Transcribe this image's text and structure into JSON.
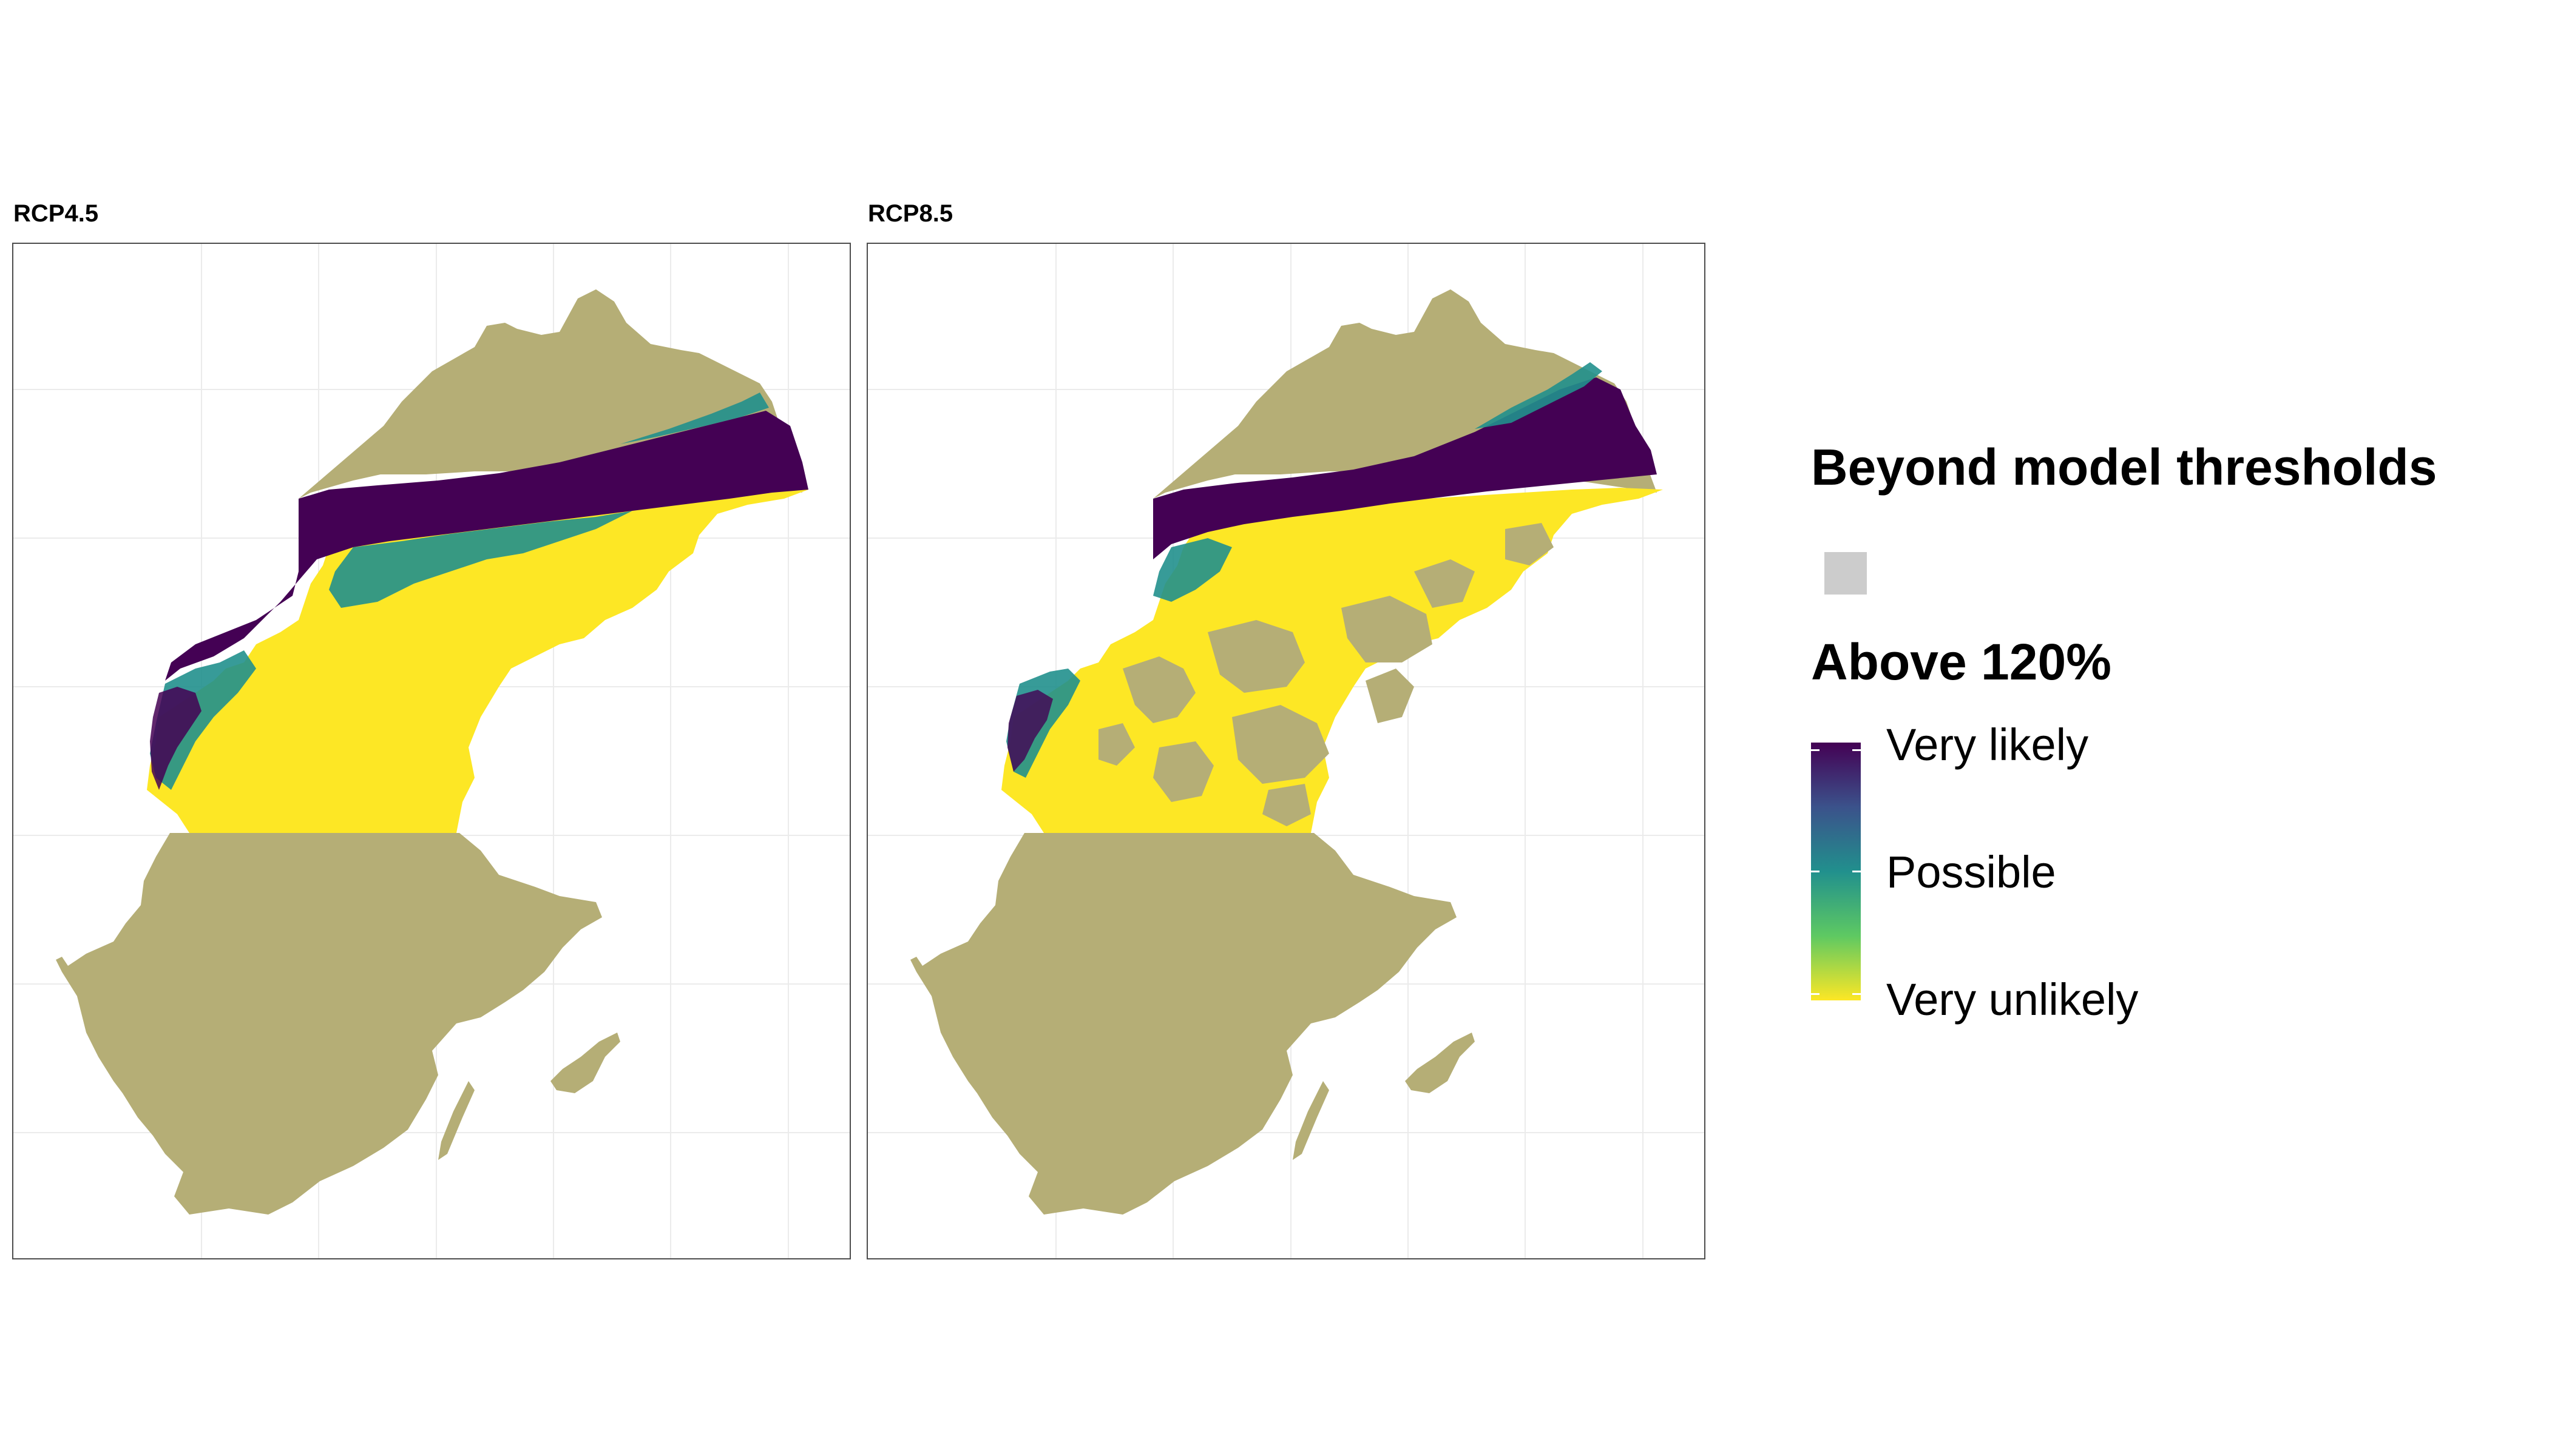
{
  "panels": [
    {
      "title": "RCP4.5"
    },
    {
      "title": "RCP8.5"
    }
  ],
  "legend": {
    "beyond_title": "Beyond model thresholds",
    "above_title": "Above 120%",
    "scale_labels": {
      "high": "Very likely",
      "mid": "Possible",
      "low": "Very unlikely"
    }
  },
  "colors": {
    "beyond": "#b5ae76",
    "beyond_swatch": "#cccccc",
    "very_likely": "#440154",
    "possible": "#21908d",
    "very_unlikely": "#fde725",
    "grid": "#ebebeb",
    "border": "#4d4d4d"
  }
}
